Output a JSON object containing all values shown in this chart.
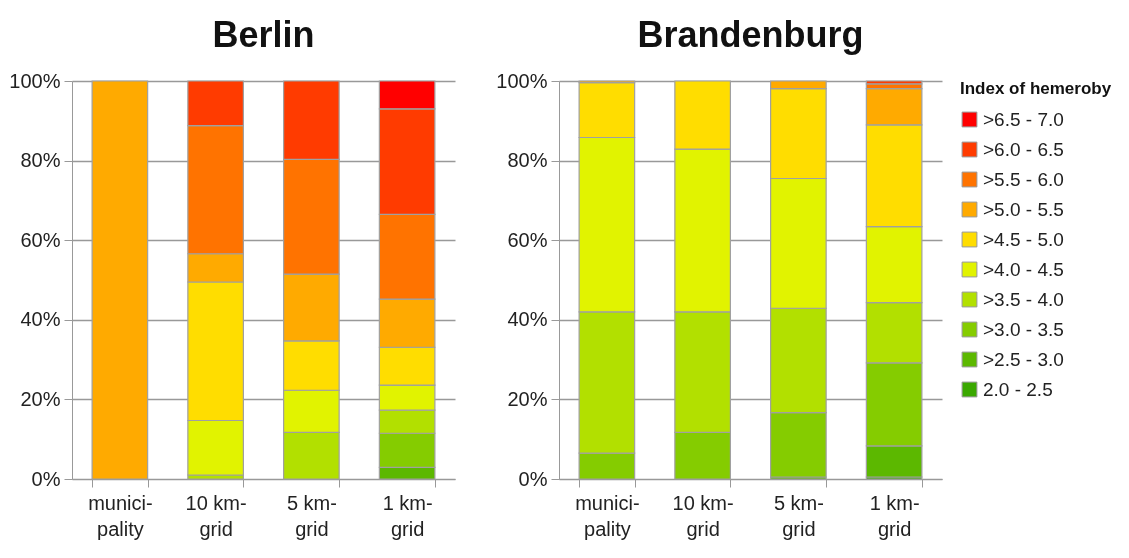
{
  "chart_data": [
    {
      "type": "bar",
      "title": "Berlin",
      "stacked": true,
      "categories": [
        "munici-pality",
        "10 km-grid",
        "5 km-grid",
        "1 km-grid"
      ],
      "ylim": [
        0,
        100
      ],
      "yticks": [
        {
          "value": 0,
          "label": "0%"
        },
        {
          "value": 20,
          "label": "20%"
        },
        {
          "value": 40,
          "label": "40%"
        },
        {
          "value": 60,
          "label": "60%"
        },
        {
          "value": 80,
          "label": "80%"
        },
        {
          "value": 100,
          "label": "100%"
        }
      ],
      "grid": "y",
      "series": [
        {
          "color": "#3aa800",
          "values": [
            0,
            0,
            0,
            0
          ]
        },
        {
          "color": "#5cb800",
          "values": [
            0,
            0,
            0,
            2.9
          ]
        },
        {
          "color": "#85cc00",
          "values": [
            0,
            0,
            0,
            8.6
          ]
        },
        {
          "color": "#b2e000",
          "values": [
            0,
            1,
            11.7,
            5.8
          ]
        },
        {
          "color": "#e1f300",
          "values": [
            0,
            13.7,
            10.6,
            6.3
          ]
        },
        {
          "color": "#ffdd00",
          "values": [
            0,
            34.8,
            12.4,
            9.5
          ]
        },
        {
          "color": "#ffaa00",
          "values": [
            100,
            7.1,
            16.8,
            12.1
          ]
        },
        {
          "color": "#ff7300",
          "values": [
            0,
            32.2,
            28.8,
            21.3
          ]
        },
        {
          "color": "#ff3b00",
          "values": [
            0,
            11.2,
            19.7,
            26.5
          ]
        },
        {
          "color": "#ff0000",
          "values": [
            0,
            0,
            0,
            7
          ]
        }
      ]
    },
    {
      "type": "bar",
      "title": "Brandenburg",
      "stacked": true,
      "categories": [
        "munici-pality",
        "10 km-grid",
        "5 km-grid",
        "1 km-grid"
      ],
      "ylim": [
        0,
        100
      ],
      "yticks": [
        {
          "value": 0,
          "label": "0%"
        },
        {
          "value": 20,
          "label": "20%"
        },
        {
          "value": 40,
          "label": "40%"
        },
        {
          "value": 60,
          "label": "60%"
        },
        {
          "value": 80,
          "label": "80%"
        },
        {
          "value": 100,
          "label": "100%"
        }
      ],
      "grid": "y",
      "legend": "right",
      "legend_title": "Index of hemeroby",
      "series": [
        {
          "name": "2.0 - 2.5",
          "color": "#3aa800",
          "values": [
            0,
            0,
            0,
            0.5
          ]
        },
        {
          "name": ">2.5 - 3.0",
          "color": "#5cb800",
          "values": [
            0,
            0,
            0.5,
            7.8
          ]
        },
        {
          "name": ">3.0 - 3.5",
          "color": "#85cc00",
          "values": [
            6.5,
            11.7,
            16.2,
            20.9
          ]
        },
        {
          "name": ">3.5 - 4.0",
          "color": "#b2e000",
          "values": [
            35.5,
            30.3,
            26.2,
            15.1
          ]
        },
        {
          "name": ">4.0 - 4.5",
          "color": "#e1f300",
          "values": [
            43.8,
            40.9,
            32.6,
            19.1
          ]
        },
        {
          "name": ">4.5 - 5.0",
          "color": "#ffdd00",
          "values": [
            13.8,
            17.1,
            22.6,
            25.6
          ]
        },
        {
          "name": ">5.0 - 5.5",
          "color": "#ffaa00",
          "values": [
            0.4,
            0,
            1.9,
            9.1
          ]
        },
        {
          "name": ">5.5 - 6.0",
          "color": "#ff7300",
          "values": [
            0,
            0,
            0,
            1.2
          ]
        },
        {
          "name": ">6.0 - 6.5",
          "color": "#ff3b00",
          "values": [
            0,
            0,
            0,
            0.7
          ]
        },
        {
          "name": ">6.5 - 7.0",
          "color": "#ff0000",
          "values": [
            0,
            0,
            0,
            0
          ]
        }
      ]
    }
  ]
}
